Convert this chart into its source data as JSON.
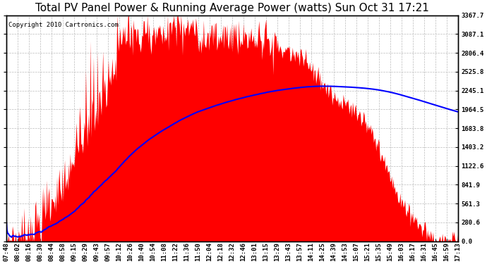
{
  "title": "Total PV Panel Power & Running Average Power (watts) Sun Oct 31 17:21",
  "copyright": "Copyright 2010 Cartronics.com",
  "y_ticks": [
    0.0,
    280.6,
    561.3,
    841.9,
    1122.6,
    1403.2,
    1683.8,
    1964.5,
    2245.1,
    2525.8,
    2806.4,
    3087.1,
    3367.7
  ],
  "x_tick_labels": [
    "07:48",
    "08:02",
    "08:16",
    "08:30",
    "08:44",
    "08:58",
    "09:15",
    "09:29",
    "09:43",
    "09:57",
    "10:12",
    "10:26",
    "10:40",
    "10:54",
    "11:08",
    "11:22",
    "11:36",
    "11:50",
    "12:04",
    "12:18",
    "12:32",
    "12:46",
    "13:01",
    "13:15",
    "13:29",
    "13:43",
    "13:57",
    "14:11",
    "14:25",
    "14:39",
    "14:53",
    "15:07",
    "15:21",
    "15:35",
    "15:49",
    "16:03",
    "16:17",
    "16:31",
    "16:45",
    "16:59",
    "17:13"
  ],
  "pv_fill_color": "#FF0000",
  "avg_line_color": "#0000FF",
  "background_color": "#FFFFFF",
  "grid_color": "#BBBBBB",
  "title_fontsize": 11,
  "copyright_fontsize": 6.5,
  "tick_fontsize": 6.5,
  "y_max": 3367.7,
  "y_min": 0.0,
  "n_points": 580
}
